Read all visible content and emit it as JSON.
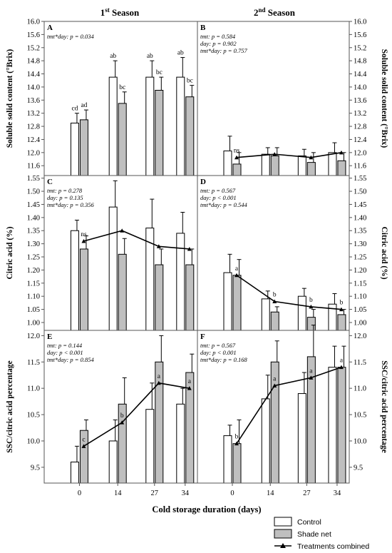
{
  "header": {
    "left": {
      "base": "1",
      "sup": "st",
      "rest": " Season"
    },
    "right": {
      "base": "2",
      "sup": "nd",
      "rest": " Season"
    }
  },
  "xlabel": "Cold storage duration (days)",
  "legend": {
    "control": "Control",
    "shade": "Shade net",
    "combined": "Treatments combined"
  },
  "colors": {
    "control": "#ffffff",
    "shade": "#bfbfbf",
    "line": "#000000",
    "frame": "#555555"
  },
  "chart_data": [
    {
      "panel": "A",
      "type": "bar",
      "row": 0,
      "col": 0,
      "categories": [
        "0",
        "14",
        "27",
        "34"
      ],
      "ylabel": "Soluble solid content (°Brix)",
      "ylim": [
        11.3,
        16.0
      ],
      "yticks": [
        "11.6",
        "12.0",
        "12.4",
        "12.8",
        "13.2",
        "13.6",
        "14.0",
        "14.4",
        "14.8",
        "15.2",
        "15.6",
        "16.0"
      ],
      "stats": [
        "tmt*day: p = 0.034"
      ],
      "series": [
        {
          "name": "Control",
          "values": [
            12.9,
            14.3,
            14.3,
            14.3
          ],
          "errors": [
            0.3,
            0.5,
            0.5,
            0.6
          ],
          "letters": [
            "cd",
            "ab",
            "ab",
            "ab"
          ]
        },
        {
          "name": "Shade net",
          "values": [
            13.0,
            13.5,
            13.9,
            13.7
          ],
          "errors": [
            0.3,
            0.35,
            0.4,
            0.35
          ],
          "letters": [
            "ad",
            "bc",
            "bc",
            "bc"
          ]
        }
      ]
    },
    {
      "panel": "B",
      "type": "bar",
      "row": 0,
      "col": 1,
      "categories": [
        "0",
        "14",
        "27",
        "34"
      ],
      "ylabel": "Soluble solid content (°Brix)",
      "ylim": [
        11.3,
        16.0
      ],
      "yticks": [
        "11.6",
        "12.0",
        "12.4",
        "12.8",
        "13.2",
        "13.6",
        "14.0",
        "14.4",
        "14.8",
        "15.2",
        "15.6",
        "16.0"
      ],
      "stats": [
        "tmt: p = 0.584",
        "day: p = 0.902",
        "tmt*day: p = 0.757"
      ],
      "series": [
        {
          "name": "Control",
          "values": [
            12.05,
            11.95,
            11.9,
            12.0
          ],
          "errors": [
            0.45,
            0.2,
            0.2,
            0.3
          ]
        },
        {
          "name": "Shade net",
          "values": [
            11.65,
            11.9,
            11.7,
            11.75
          ],
          "errors": [
            0.35,
            0.25,
            0.3,
            0.25
          ]
        }
      ],
      "combined": [
        11.85,
        11.95,
        11.85,
        12.0
      ],
      "point_labels": [
        "ns",
        "",
        "",
        ""
      ]
    },
    {
      "panel": "C",
      "type": "bar",
      "row": 1,
      "col": 0,
      "categories": [
        "0",
        "14",
        "27",
        "34"
      ],
      "ylabel": "Citric acid (%)",
      "ylim": [
        0.97,
        1.56
      ],
      "yticks": [
        "1.00",
        "1.05",
        "1.10",
        "1.15",
        "1.20",
        "1.25",
        "1.30",
        "1.35",
        "1.40",
        "1.45",
        "1.50",
        "1.55"
      ],
      "stats": [
        "tmt: p = 0.278",
        "day: p = 0.135",
        "tmt*day: p = 0.356"
      ],
      "series": [
        {
          "name": "Control",
          "values": [
            1.35,
            1.44,
            1.36,
            1.34
          ],
          "errors": [
            0.04,
            0.1,
            0.11,
            0.08
          ]
        },
        {
          "name": "Shade net",
          "values": [
            1.28,
            1.26,
            1.22,
            1.22
          ],
          "errors": [
            0.05,
            0.06,
            0.06,
            0.06
          ]
        }
      ],
      "combined": [
        1.31,
        1.35,
        1.29,
        1.28
      ],
      "point_labels": [
        "ns",
        "",
        "",
        ""
      ]
    },
    {
      "panel": "D",
      "type": "bar",
      "row": 1,
      "col": 1,
      "categories": [
        "0",
        "14",
        "27",
        "34"
      ],
      "ylabel": "Citric acid (%)",
      "ylim": [
        0.97,
        1.56
      ],
      "yticks": [
        "1.00",
        "1.05",
        "1.10",
        "1.15",
        "1.20",
        "1.25",
        "1.30",
        "1.35",
        "1.40",
        "1.45",
        "1.50",
        "1.55"
      ],
      "stats": [
        "tmt: p = 0.567",
        "day: p < 0.001",
        "tmt*day: p = 0.544"
      ],
      "series": [
        {
          "name": "Control",
          "values": [
            1.19,
            1.09,
            1.1,
            1.07
          ],
          "errors": [
            0.07,
            0.03,
            0.03,
            0.04
          ]
        },
        {
          "name": "Shade net",
          "values": [
            1.18,
            1.04,
            1.02,
            1.03
          ],
          "errors": [
            0.06,
            0.02,
            0.03,
            0.02
          ]
        }
      ],
      "combined": [
        1.18,
        1.08,
        1.06,
        1.05
      ],
      "point_labels": [
        "a",
        "b",
        "b",
        "b"
      ]
    },
    {
      "panel": "E",
      "type": "bar",
      "row": 2,
      "col": 0,
      "categories": [
        "0",
        "14",
        "27",
        "34"
      ],
      "ylabel": "SSC/citric acid percentage",
      "ylim": [
        9.2,
        12.1
      ],
      "yticks": [
        "9.5",
        "10.0",
        "10.5",
        "11.0",
        "11.5",
        "12.0"
      ],
      "stats": [
        "tmt: p = 0.144",
        "day: p < 0.001",
        "tmt*day: p = 0.854"
      ],
      "series": [
        {
          "name": "Control",
          "values": [
            9.6,
            10.0,
            10.6,
            10.7
          ],
          "errors": [
            0.3,
            0.4,
            0.5,
            0.3
          ]
        },
        {
          "name": "Shade net",
          "values": [
            10.2,
            10.7,
            11.5,
            11.3
          ],
          "errors": [
            0.2,
            0.5,
            0.5,
            0.35
          ]
        }
      ],
      "combined": [
        9.9,
        10.35,
        11.1,
        11.0
      ],
      "point_labels": [
        "c",
        "b",
        "a",
        "a"
      ]
    },
    {
      "panel": "F",
      "type": "bar",
      "row": 2,
      "col": 1,
      "categories": [
        "0",
        "14",
        "27",
        "34"
      ],
      "ylabel": "SSC/citric acid percentage",
      "ylim": [
        9.2,
        12.1
      ],
      "yticks": [
        "9.5",
        "10.0",
        "10.5",
        "11.0",
        "11.5",
        "12.0"
      ],
      "stats": [
        "tmt: p = 0.567",
        "day: p < 0.001",
        "tmt*day: p = 0.168"
      ],
      "series": [
        {
          "name": "Control",
          "values": [
            10.1,
            10.8,
            10.9,
            11.4
          ],
          "errors": [
            0.2,
            0.45,
            0.4,
            0.4
          ]
        },
        {
          "name": "Shade net",
          "values": [
            9.95,
            11.5,
            11.6,
            11.4
          ],
          "errors": [
            0.45,
            0.4,
            0.6,
            0.4
          ]
        }
      ],
      "combined": [
        9.95,
        11.05,
        11.2,
        11.4
      ],
      "point_labels": [
        "b",
        "a",
        "a",
        "a"
      ]
    }
  ]
}
